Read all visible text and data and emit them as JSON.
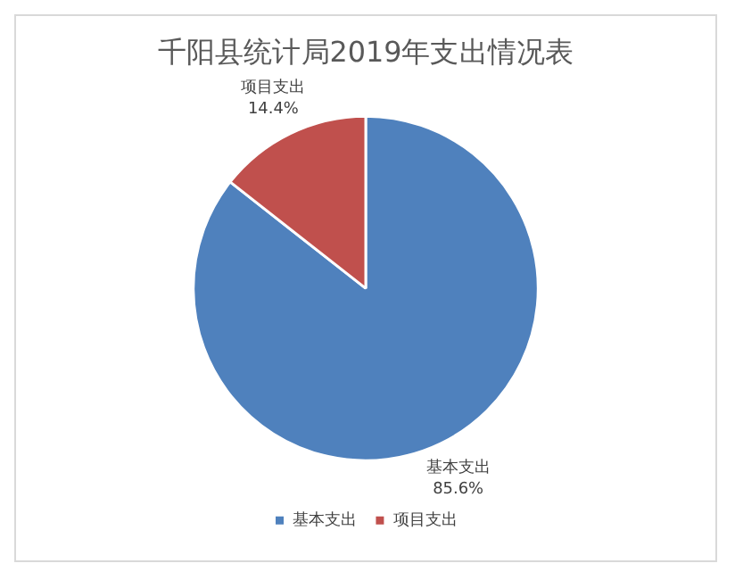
{
  "chart_data": {
    "type": "pie",
    "title": "千阳县统计局2019年支出情况表",
    "categories": [
      "基本支出",
      "项目支出"
    ],
    "values": [
      85.6,
      14.4
    ],
    "colors": [
      "#4f81bd",
      "#c0504d"
    ],
    "value_labels": [
      "85.6%",
      "14.4%"
    ],
    "legend": "bottom"
  }
}
